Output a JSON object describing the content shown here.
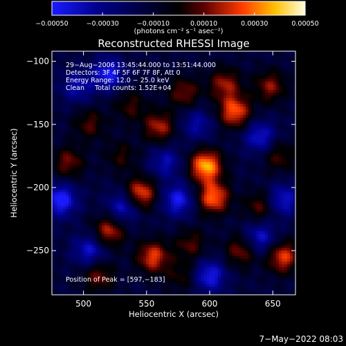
{
  "chart_data": {
    "type": "heatmap",
    "title": "Reconstructed RHESSI Image",
    "xlabel": "Heliocentric X (arcsec)",
    "ylabel": "Heliocentric Y (arcsec)",
    "xlim": [
      475,
      668
    ],
    "ylim": [
      -285,
      -92
    ],
    "x_ticks": [
      500,
      550,
      600,
      650
    ],
    "y_ticks": [
      -100,
      -150,
      -200,
      -250
    ],
    "x_tick_labels": [
      "500",
      "550",
      "600",
      "650"
    ],
    "y_tick_labels": [
      "−100",
      "−150",
      "−200",
      "−250"
    ],
    "colorbar": {
      "range": [
        -0.0005,
        0.0005
      ],
      "ticks": [
        -0.0005,
        -0.0003,
        -0.0001,
        0.0001,
        0.0003,
        0.0005
      ],
      "tick_labels": [
        "−0.00050",
        "−0.00030",
        "−0.00010",
        "0.00010",
        "0.00030",
        "0.00050"
      ],
      "unit_label": "(photons cm⁻² s⁻¹ asec⁻²)",
      "colors": [
        "#1a1aff",
        "#00008b",
        "#000000",
        "#5a0000",
        "#ff3a00",
        "#ffc000",
        "#ffffe0"
      ]
    },
    "annotations": [
      "29−Aug−2006 13:45:44.000 to 13:51:44.000",
      "Detectors: 3F 4F 5F 6F 7F 8F, Att 0",
      "Energy Range: 12.0 − 25.0 keV",
      "Clean     Total counts: 1.52E+04",
      "Position of Peak = [597,−183]"
    ],
    "peaks": [
      {
        "x": 597,
        "y": -183,
        "v": 0.0005
      },
      {
        "x": 603,
        "y": -208,
        "v": 0.00042
      },
      {
        "x": 545,
        "y": -205,
        "v": 0.0004
      },
      {
        "x": 560,
        "y": -152,
        "v": 0.0003
      },
      {
        "x": 620,
        "y": -140,
        "v": 0.0004
      },
      {
        "x": 612,
        "y": -118,
        "v": 0.00028
      },
      {
        "x": 648,
        "y": -120,
        "v": 0.00026
      },
      {
        "x": 580,
        "y": -125,
        "v": 0.00024
      },
      {
        "x": 520,
        "y": -235,
        "v": 0.00032
      },
      {
        "x": 488,
        "y": -180,
        "v": 0.00024
      },
      {
        "x": 505,
        "y": -150,
        "v": 0.0002
      },
      {
        "x": 512,
        "y": -270,
        "v": 0.00024
      },
      {
        "x": 555,
        "y": -255,
        "v": 0.00036
      },
      {
        "x": 625,
        "y": -250,
        "v": 0.00026
      },
      {
        "x": 640,
        "y": -215,
        "v": 0.00022
      },
      {
        "x": 658,
        "y": -255,
        "v": 0.00036
      },
      {
        "x": 655,
        "y": -175,
        "v": 0.0002
      },
      {
        "x": 585,
        "y": -245,
        "v": 0.0002
      },
      {
        "x": 537,
        "y": -135,
        "v": 0.00018
      },
      {
        "x": 578,
        "y": -270,
        "v": 0.00016
      },
      {
        "x": 530,
        "y": -175,
        "v": 0.00016
      }
    ],
    "troughs": [
      {
        "x": 482,
        "y": -210,
        "v": -0.0004
      },
      {
        "x": 520,
        "y": -110,
        "v": -0.00034
      },
      {
        "x": 532,
        "y": -215,
        "v": -0.0003
      },
      {
        "x": 575,
        "y": -210,
        "v": -0.00034
      },
      {
        "x": 505,
        "y": -250,
        "v": -0.0003
      },
      {
        "x": 600,
        "y": -270,
        "v": -0.00034
      },
      {
        "x": 640,
        "y": -240,
        "v": -0.0003
      },
      {
        "x": 640,
        "y": -160,
        "v": -0.0003
      },
      {
        "x": 565,
        "y": -180,
        "v": -0.00024
      },
      {
        "x": 658,
        "y": -210,
        "v": -0.0003
      },
      {
        "x": 495,
        "y": -120,
        "v": -0.00024
      },
      {
        "x": 590,
        "y": -150,
        "v": -0.00022
      }
    ]
  },
  "footer": {
    "timestamp": "7−May−2022 08:03"
  }
}
